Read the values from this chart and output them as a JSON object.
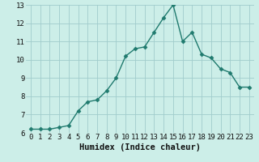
{
  "x": [
    0,
    1,
    2,
    3,
    4,
    5,
    6,
    7,
    8,
    9,
    10,
    11,
    12,
    13,
    14,
    15,
    16,
    17,
    18,
    19,
    20,
    21,
    22,
    23
  ],
  "y": [
    6.2,
    6.2,
    6.2,
    6.3,
    6.4,
    7.2,
    7.7,
    7.8,
    8.3,
    9.0,
    10.2,
    10.6,
    10.7,
    11.5,
    12.3,
    13.0,
    11.0,
    11.5,
    10.3,
    10.1,
    9.5,
    9.3,
    8.5,
    8.5
  ],
  "xlabel": "Humidex (Indice chaleur)",
  "xlim_min": -0.5,
  "xlim_max": 23.5,
  "ylim_min": 6,
  "ylim_max": 13,
  "yticks": [
    6,
    7,
    8,
    9,
    10,
    11,
    12,
    13
  ],
  "xticks": [
    0,
    1,
    2,
    3,
    4,
    5,
    6,
    7,
    8,
    9,
    10,
    11,
    12,
    13,
    14,
    15,
    16,
    17,
    18,
    19,
    20,
    21,
    22,
    23
  ],
  "line_color": "#1f7a6e",
  "bg_color": "#cceee8",
  "grid_color": "#a0cccc",
  "xlabel_fontsize": 7.5,
  "tick_fontsize": 6.5,
  "linewidth": 1.0,
  "markersize": 2.5
}
